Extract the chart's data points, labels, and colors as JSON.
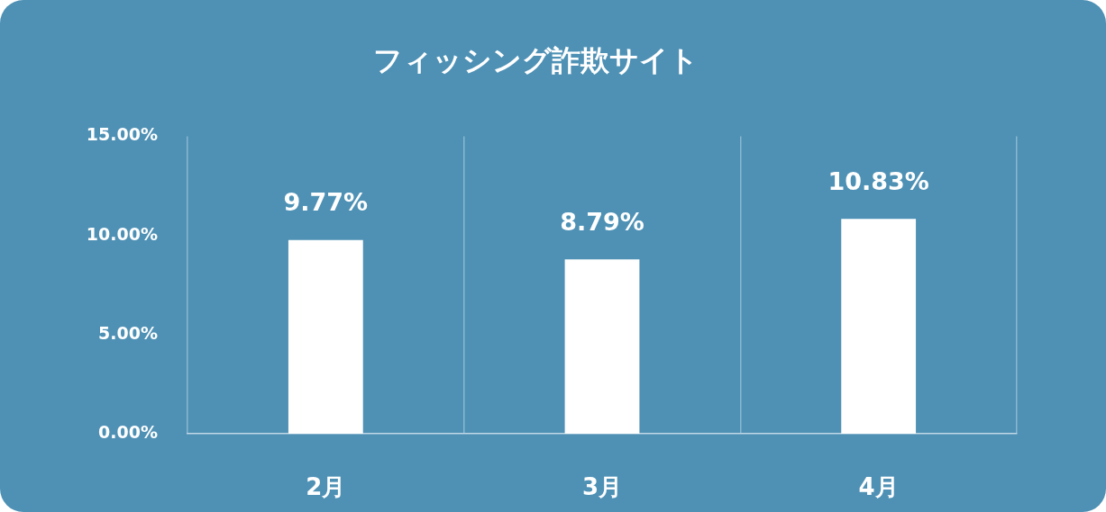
{
  "chart_data": {
    "type": "bar",
    "title": "フィッシング詐欺サイト",
    "categories": [
      "2月",
      "3月",
      "4月"
    ],
    "values": [
      9.77,
      8.79,
      10.83
    ],
    "color": "#ffffff",
    "value_labels": [
      "9.77%",
      "8.79%",
      "10.83%"
    ],
    "ylim": [
      0,
      15
    ],
    "yticks": [
      {
        "value": 0,
        "label": "0.00%"
      },
      {
        "value": 5,
        "label": "5.00%"
      },
      {
        "value": 10,
        "label": "10.00%"
      },
      {
        "value": 15,
        "label": "15.00%"
      }
    ],
    "grid": "x"
  }
}
